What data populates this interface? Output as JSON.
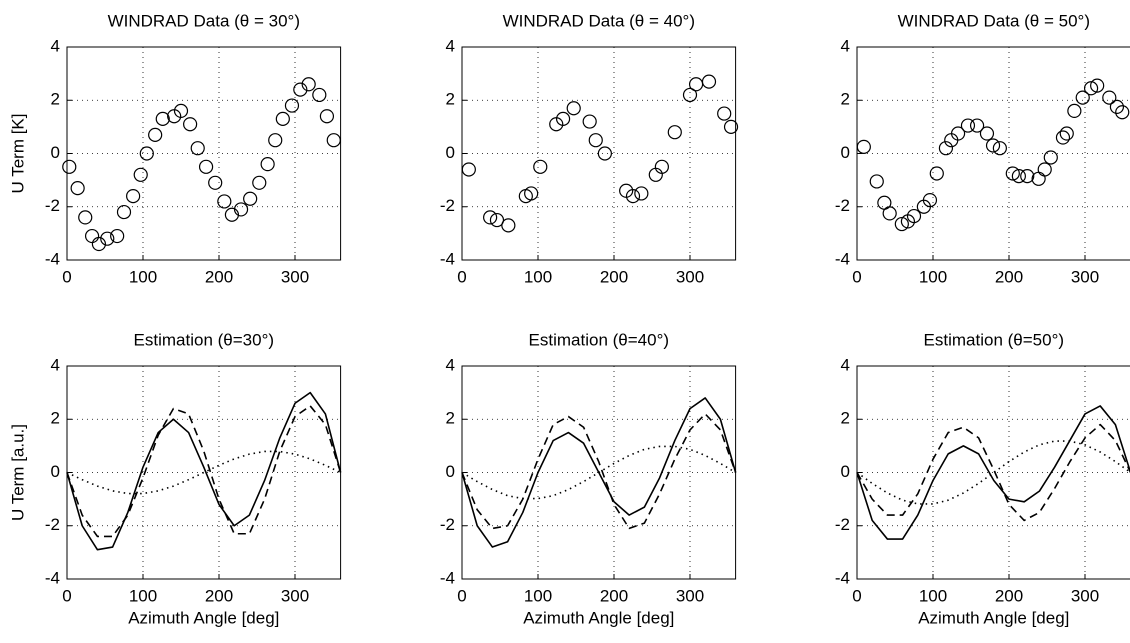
{
  "chart_data": [
    {
      "type": "scatter",
      "title": "WINDRAD Data (θ = 30°)",
      "ylabel": "U Term [K]",
      "x": [
        3,
        14,
        24,
        33,
        42,
        53,
        66,
        75,
        87,
        97,
        105,
        116,
        126,
        141,
        150,
        162,
        172,
        183,
        195,
        207,
        217,
        229,
        241,
        253,
        264,
        274,
        284,
        296,
        307,
        318,
        332,
        342,
        351
      ],
      "values": [
        -0.5,
        -1.3,
        -2.4,
        -3.1,
        -3.4,
        -3.2,
        -3.1,
        -2.2,
        -1.6,
        -0.8,
        0,
        0.7,
        1.3,
        1.4,
        1.6,
        1.1,
        0.2,
        -0.5,
        -1.1,
        -1.8,
        -2.3,
        -2.1,
        -1.7,
        -1.1,
        -0.4,
        0.5,
        1.3,
        1.8,
        2.4,
        2.6,
        2.2,
        1.4,
        0.5
      ],
      "color": "#000000",
      "xlim": [
        0,
        360
      ],
      "xticks": [
        0,
        100,
        200,
        300
      ],
      "ylim": [
        -4,
        4
      ],
      "yticks": [
        -4,
        -2,
        0,
        2,
        4
      ],
      "grid": true
    },
    {
      "type": "scatter",
      "title": "WINDRAD Data (θ = 40°)",
      "x": [
        9,
        37,
        46,
        61,
        84,
        91,
        103,
        124,
        133,
        147,
        168,
        176,
        188,
        216,
        225,
        236,
        255,
        263,
        280,
        300,
        308,
        325,
        345,
        354
      ],
      "values": [
        -0.6,
        -2.4,
        -2.5,
        -2.7,
        -1.6,
        -1.5,
        -0.5,
        1.1,
        1.3,
        1.7,
        1.2,
        0.5,
        0,
        -1.4,
        -1.6,
        -1.5,
        -0.8,
        -0.5,
        0.8,
        2.2,
        2.6,
        2.7,
        1.5,
        1.0
      ],
      "color": "#000000",
      "xlim": [
        0,
        360
      ],
      "xticks": [
        0,
        100,
        200,
        300
      ],
      "ylim": [
        -4,
        4
      ],
      "yticks": [
        -4,
        -2,
        0,
        2,
        4
      ],
      "grid": true
    },
    {
      "type": "scatter",
      "title": "WINDRAD Data (θ = 50°)",
      "x": [
        9,
        26,
        36,
        43,
        59,
        67,
        75,
        88,
        96,
        105,
        117,
        124,
        133,
        146,
        158,
        171,
        179,
        188,
        205,
        213,
        224,
        239,
        247,
        255,
        271,
        276,
        286,
        297,
        308,
        316,
        332,
        342,
        349
      ],
      "values": [
        0.25,
        -1.05,
        -1.85,
        -2.25,
        -2.65,
        -2.55,
        -2.35,
        -2.0,
        -1.75,
        -0.75,
        0.2,
        0.5,
        0.75,
        1.05,
        1.05,
        0.75,
        0.3,
        0.2,
        -0.75,
        -0.85,
        -0.85,
        -0.95,
        -0.6,
        -0.15,
        0.6,
        0.75,
        1.6,
        2.1,
        2.45,
        2.55,
        2.1,
        1.75,
        1.55
      ],
      "color": "#000000",
      "xlim": [
        0,
        360
      ],
      "xticks": [
        0,
        100,
        200,
        300
      ],
      "ylim": [
        -4,
        4
      ],
      "yticks": [
        -4,
        -2,
        0,
        2,
        4
      ],
      "grid": true
    },
    {
      "type": "line",
      "title": "Estimation (θ=30°)",
      "ylabel": "U Term [a.u.]",
      "xlabel": "Azimuth Angle [deg]",
      "x": [
        0,
        20,
        40,
        60,
        80,
        100,
        120,
        140,
        160,
        180,
        200,
        220,
        240,
        260,
        280,
        300,
        320,
        340,
        360
      ],
      "series": [
        {
          "dash": "solid",
          "color": "#000000",
          "values": [
            0,
            -2.0,
            -2.9,
            -2.8,
            -1.5,
            0.2,
            1.5,
            2.0,
            1.5,
            0.2,
            -1.2,
            -2.0,
            -1.6,
            -0.3,
            1.3,
            2.6,
            3.0,
            2.2,
            0
          ]
        },
        {
          "dash": "dashed",
          "color": "#000000",
          "values": [
            0,
            -1.6,
            -2.4,
            -2.4,
            -1.6,
            -0.2,
            1.4,
            2.4,
            2.2,
            0.8,
            -1.0,
            -2.3,
            -2.3,
            -1.0,
            0.8,
            2.1,
            2.5,
            1.8,
            0
          ]
        },
        {
          "dash": "dotted",
          "color": "#000000",
          "values": [
            0,
            -0.27,
            -0.51,
            -0.69,
            -0.79,
            -0.79,
            -0.69,
            -0.51,
            -0.27,
            0,
            0.27,
            0.51,
            0.69,
            0.79,
            0.79,
            0.69,
            0.51,
            0.27,
            0
          ]
        }
      ],
      "xlim": [
        0,
        360
      ],
      "xticks": [
        0,
        100,
        200,
        300
      ],
      "ylim": [
        -4,
        4
      ],
      "yticks": [
        -4,
        -2,
        0,
        2,
        4
      ],
      "grid": true
    },
    {
      "type": "line",
      "title": "Estimation (θ=40°)",
      "xlabel": "Azimuth Angle [deg]",
      "x": [
        0,
        20,
        40,
        60,
        80,
        100,
        120,
        140,
        160,
        180,
        200,
        220,
        240,
        260,
        280,
        300,
        320,
        340,
        360
      ],
      "series": [
        {
          "dash": "solid",
          "color": "#000000",
          "values": [
            0,
            -2.0,
            -2.8,
            -2.6,
            -1.5,
            0,
            1.2,
            1.5,
            1.1,
            0,
            -1.1,
            -1.6,
            -1.3,
            -0.2,
            1.2,
            2.4,
            2.8,
            2.0,
            0
          ]
        },
        {
          "dash": "dashed",
          "color": "#000000",
          "values": [
            0,
            -1.4,
            -2.1,
            -2.0,
            -1.0,
            0.5,
            1.8,
            2.1,
            1.7,
            0.4,
            -1.2,
            -2.1,
            -1.9,
            -0.8,
            0.5,
            1.6,
            2.2,
            1.6,
            0
          ]
        },
        {
          "dash": "dotted",
          "color": "#000000",
          "values": [
            0,
            -0.34,
            -0.64,
            -0.87,
            -0.98,
            -0.98,
            -0.87,
            -0.64,
            -0.34,
            0,
            0.34,
            0.64,
            0.87,
            0.98,
            0.98,
            0.87,
            0.64,
            0.34,
            0
          ]
        }
      ],
      "xlim": [
        0,
        360
      ],
      "xticks": [
        0,
        100,
        200,
        300
      ],
      "ylim": [
        -4,
        4
      ],
      "yticks": [
        -4,
        -2,
        0,
        2,
        4
      ],
      "grid": true
    },
    {
      "type": "line",
      "title": "Estimation (θ=50°)",
      "xlabel": "Azimuth Angle [deg]",
      "x": [
        0,
        20,
        40,
        60,
        80,
        100,
        120,
        140,
        160,
        180,
        200,
        220,
        240,
        260,
        280,
        300,
        320,
        340,
        360
      ],
      "series": [
        {
          "dash": "solid",
          "color": "#000000",
          "values": [
            0,
            -1.8,
            -2.5,
            -2.5,
            -1.6,
            -0.3,
            0.7,
            1.0,
            0.7,
            -0.3,
            -1.0,
            -1.1,
            -0.7,
            0.2,
            1.2,
            2.2,
            2.5,
            1.8,
            0
          ]
        },
        {
          "dash": "dashed",
          "color": "#000000",
          "values": [
            0,
            -1.0,
            -1.6,
            -1.6,
            -0.8,
            0.5,
            1.5,
            1.7,
            1.3,
            0.1,
            -1.2,
            -1.8,
            -1.5,
            -0.6,
            0.4,
            1.3,
            1.8,
            1.2,
            0
          ]
        },
        {
          "dash": "dotted",
          "color": "#000000",
          "values": [
            0,
            -0.41,
            -0.77,
            -1.04,
            -1.18,
            -1.18,
            -1.04,
            -0.77,
            -0.41,
            0,
            0.41,
            0.77,
            1.04,
            1.18,
            1.18,
            1.04,
            0.77,
            0.41,
            0
          ]
        }
      ],
      "xlim": [
        0,
        360
      ],
      "xticks": [
        0,
        100,
        200,
        300
      ],
      "ylim": [
        -4,
        4
      ],
      "yticks": [
        -4,
        -2,
        0,
        2,
        4
      ],
      "grid": true
    }
  ]
}
